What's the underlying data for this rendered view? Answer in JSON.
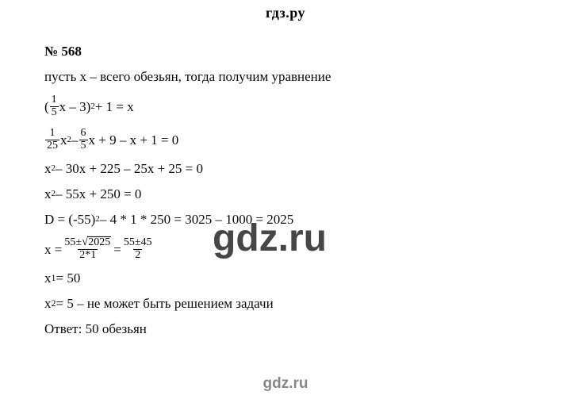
{
  "header": "гдз.ру",
  "footer": "gdz.ru",
  "watermark": "gdz.ru",
  "problem": {
    "number": "№ 568",
    "intro": "пусть x – всего обезьян, тогда получим уравнение",
    "eq1": {
      "lp": "(",
      "f1n": "1",
      "f1d": "5",
      "mid": "x – 3)",
      "sup": "2",
      "tail": " + 1 = x"
    },
    "eq2": {
      "f1n": "1",
      "f1d": "25",
      "a": "x",
      "s1": "2",
      "m": " – ",
      "f2n": "6",
      "f2d": "5",
      "tail": "x + 9 – x + 1 = 0"
    },
    "eq3_a": "x",
    "eq3_s": "2",
    "eq3_t": " – 30x + 225 – 25x + 25 = 0",
    "eq4_a": "x",
    "eq4_s": "2",
    "eq4_t": " – 55x + 250 = 0",
    "disc_a": "D = (-55)",
    "disc_s": "2",
    "disc_t": " – 4 * 1 * 250 = 3025 – 1000 = 2025",
    "root": {
      "lead": "x = ",
      "num1a": "55±",
      "num1b": "2025",
      "den1": "2*1",
      "eq": " = ",
      "num2": "55±45",
      "den2": "2"
    },
    "x1_a": "x",
    "x1_s": "1",
    "x1_t": " = 50",
    "x2_a": "x",
    "x2_s": "2",
    "x2_t": " = 5 – не может быть решением задачи",
    "answer": "Ответ: 50 обезьян"
  }
}
